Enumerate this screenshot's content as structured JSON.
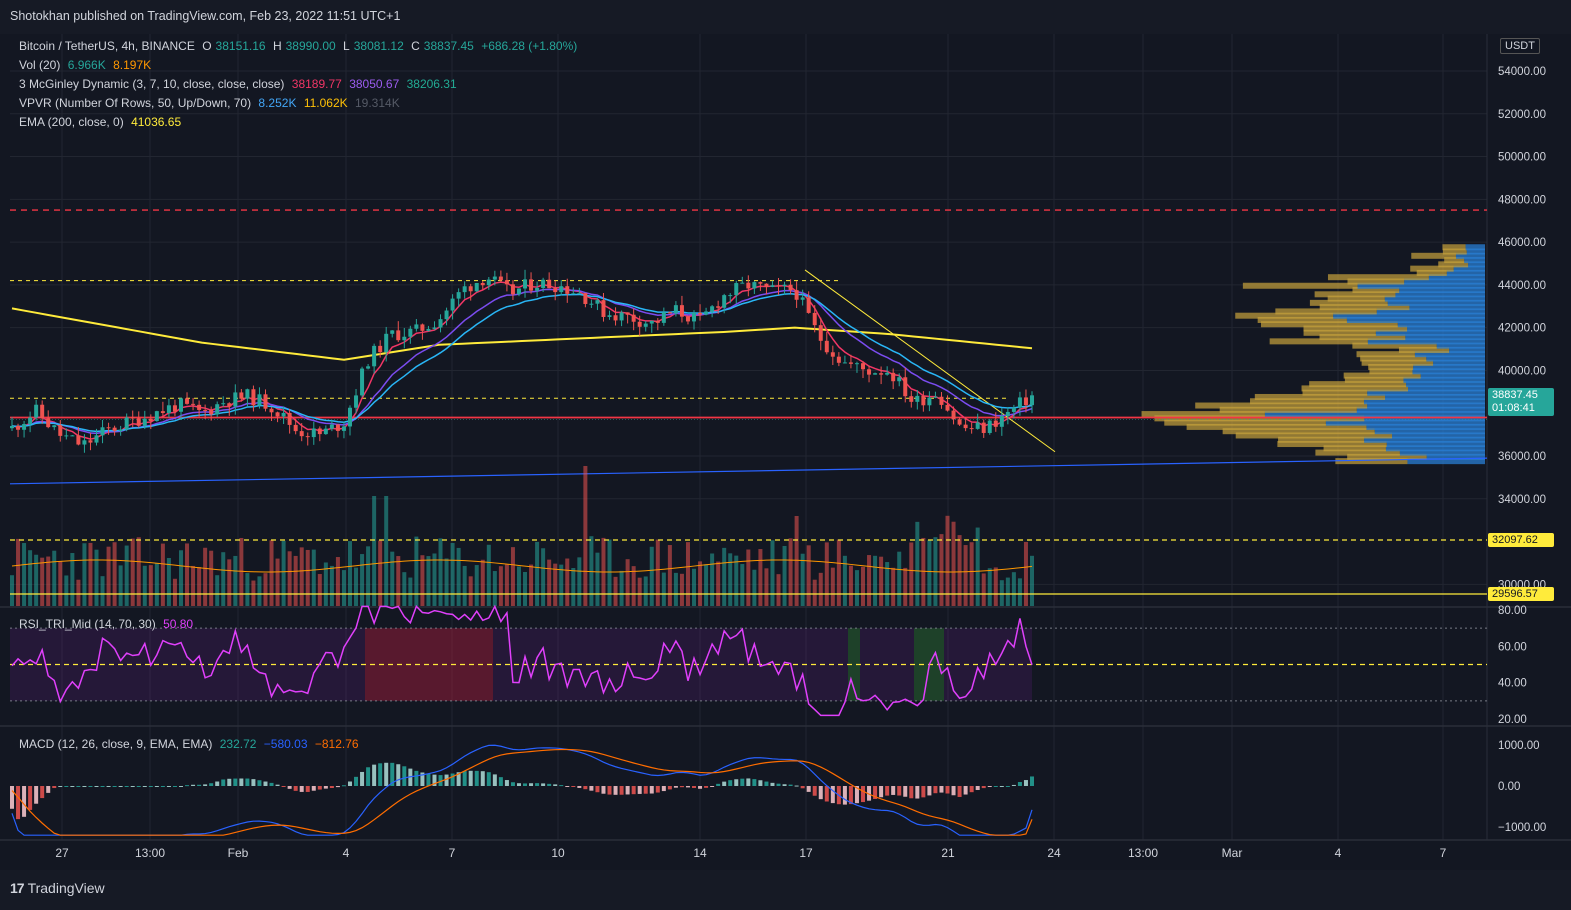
{
  "header": {
    "text": "Shotokhan published on TradingView.com, Feb 23, 2022 11:51 UTC+1"
  },
  "footer": {
    "logo_text": "TradingView",
    "logo_mark": "17"
  },
  "symbol_line": {
    "symbol": "Bitcoin / TetherUS, 4h, BINANCE",
    "o_label": "O",
    "o": "38151.16",
    "h_label": "H",
    "h": "38990.00",
    "l_label": "L",
    "l": "38081.12",
    "c_label": "C",
    "c": "38837.45",
    "change": "+686.28 (+1.80%)"
  },
  "vol_line": {
    "label": "Vol (20)",
    "v1": "6.966K",
    "v2": "8.197K"
  },
  "mcginley_line": {
    "label": "3 McGinley Dynamic (3, 7, 10, close, close, close)",
    "v1": "38189.77",
    "v2": "38050.67",
    "v3": "38206.31"
  },
  "vpvr_line": {
    "label": "VPVR (Number Of Rows, 50, Up/Down, 70)",
    "v1": "8.252K",
    "v2": "11.062K",
    "v3": "19.314K"
  },
  "ema_line": {
    "label": "EMA (200, close, 0)",
    "v1": "41036.65"
  },
  "rsi_line": {
    "label": "RSI_TRI_Mid (14, 70, 30)",
    "v1": "50.80"
  },
  "macd_line": {
    "label": "MACD (12, 26, close, 9, EMA, EMA)",
    "v1": "232.72",
    "v2": "−580.03",
    "v3": "−812.76"
  },
  "price_axis": {
    "currency": "USDT",
    "ticks": [
      "54000.00",
      "52000.00",
      "50000.00",
      "48000.00",
      "46000.00",
      "44000.00",
      "42000.00",
      "40000.00",
      "36000.00",
      "34000.00",
      "32097.62",
      "30000.00",
      "29596.57"
    ],
    "last_price": "38837.45",
    "countdown": "01:08:41",
    "level_a": "32097.62",
    "level_b": "29596.57"
  },
  "rsi_axis": {
    "ticks": [
      "80.00",
      "60.00",
      "40.00",
      "20.00"
    ]
  },
  "macd_axis": {
    "ticks": [
      "1000.00",
      "0.00",
      "−1000.00"
    ]
  },
  "time_axis": {
    "ticks": [
      "27",
      "13:00",
      "Feb",
      "4",
      "7",
      "10",
      "14",
      "17",
      "21",
      "24",
      "13:00",
      "Mar",
      "4",
      "7"
    ]
  },
  "colors": {
    "background": "#131722",
    "up": "#26a69a",
    "down": "#ef5350",
    "mcginley1": "#f23666",
    "mcginley2": "#9c27b0",
    "mcginley3": "#22ab94",
    "ema200": "#ffeb3b",
    "resistance": "#f23645",
    "support": "#f23645",
    "channel": "#2962ff",
    "rsi": "#e040fb",
    "macd": "#2962ff",
    "signal": "#ff6d00",
    "vpvr_up": "#2a7fd4",
    "vpvr_down": "#c8a23c"
  },
  "chart_data": {
    "type": "candlestick",
    "symbol": "Bitcoin / TetherUS",
    "interval": "4h",
    "exchange": "BINANCE",
    "x_ticks": [
      "27",
      "13:00",
      "Feb",
      "4",
      "7",
      "10",
      "14",
      "17",
      "21",
      "24",
      "13:00",
      "Mar",
      "4",
      "7"
    ],
    "price_range": [
      28000,
      56000
    ],
    "close_path": [
      {
        "t": 0,
        "p": 37300
      },
      {
        "t": 1,
        "p": 38100
      },
      {
        "t": 2,
        "p": 37000
      },
      {
        "t": 3,
        "p": 36500
      },
      {
        "t": 4,
        "p": 37200
      },
      {
        "t": 5,
        "p": 37600
      },
      {
        "t": 6,
        "p": 38000
      },
      {
        "t": 7,
        "p": 38400
      },
      {
        "t": 8,
        "p": 38000
      },
      {
        "t": 9,
        "p": 38600
      },
      {
        "t": 10,
        "p": 38800
      },
      {
        "t": 11,
        "p": 38300
      },
      {
        "t": 12,
        "p": 37200
      },
      {
        "t": 13,
        "p": 37000
      },
      {
        "t": 14,
        "p": 37600
      },
      {
        "t": 15,
        "p": 40500
      },
      {
        "t": 16,
        "p": 41700
      },
      {
        "t": 17,
        "p": 41800
      },
      {
        "t": 18,
        "p": 42400
      },
      {
        "t": 19,
        "p": 43800
      },
      {
        "t": 20,
        "p": 44400
      },
      {
        "t": 21,
        "p": 43600
      },
      {
        "t": 22,
        "p": 44100
      },
      {
        "t": 23,
        "p": 44000
      },
      {
        "t": 24,
        "p": 43600
      },
      {
        "t": 25,
        "p": 42700
      },
      {
        "t": 26,
        "p": 42500
      },
      {
        "t": 27,
        "p": 42200
      },
      {
        "t": 28,
        "p": 42800
      },
      {
        "t": 29,
        "p": 42300
      },
      {
        "t": 30,
        "p": 43500
      },
      {
        "t": 31,
        "p": 44000
      },
      {
        "t": 32,
        "p": 43700
      },
      {
        "t": 33,
        "p": 43800
      },
      {
        "t": 34,
        "p": 41600
      },
      {
        "t": 35,
        "p": 40400
      },
      {
        "t": 36,
        "p": 40000
      },
      {
        "t": 37,
        "p": 40000
      },
      {
        "t": 38,
        "p": 38500
      },
      {
        "t": 39,
        "p": 39000
      },
      {
        "t": 40,
        "p": 37300
      },
      {
        "t": 41,
        "p": 37300
      },
      {
        "t": 42,
        "p": 38000
      },
      {
        "t": 43,
        "p": 38837
      }
    ],
    "ema200_path": [
      {
        "t": 0,
        "p": 42900
      },
      {
        "t": 8,
        "p": 41300
      },
      {
        "t": 14,
        "p": 40500
      },
      {
        "t": 18,
        "p": 41200
      },
      {
        "t": 24,
        "p": 41500
      },
      {
        "t": 30,
        "p": 41800
      },
      {
        "t": 33,
        "p": 42000
      },
      {
        "t": 37,
        "p": 41700
      },
      {
        "t": 43,
        "p": 41037
      }
    ],
    "horizontal_levels": {
      "red_dashed": 47500,
      "yellow_dashed_upper": 44200,
      "yellow_dashed_lower": 38700,
      "red_solid": 37800,
      "blue_trend_start": 34700,
      "blue_trend_end": 35900
    },
    "rsi": {
      "value": 50.8,
      "overbought": 70,
      "oversold": 30,
      "mid": 50,
      "range": [
        20,
        80
      ]
    },
    "macd": {
      "macd": 232.72,
      "signal": -580.03,
      "hist": -812.76,
      "range": [
        -1300,
        1300
      ]
    },
    "volume_levels": {
      "v1": 32097.62,
      "v2": 29596.57
    }
  }
}
